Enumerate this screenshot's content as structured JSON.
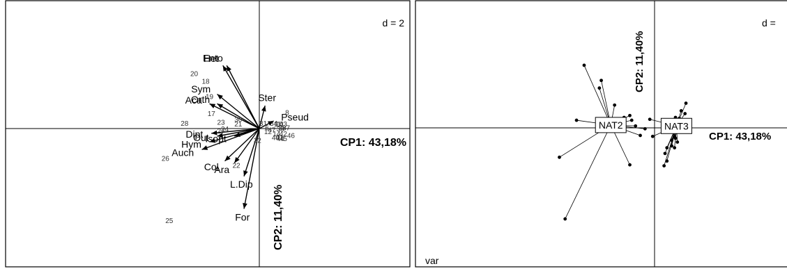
{
  "chart_data": [
    {
      "type": "scatter",
      "subtype": "biplot",
      "scale_label": "d = 2",
      "axis_labels": {
        "x": "CP1: 43,18%",
        "y": "CP2: 11,40%"
      },
      "xlim": [
        -7.8,
        4.3
      ],
      "ylim": [
        -5.1,
        3.8
      ],
      "variable_arrows": [
        {
          "label": "Het",
          "x": -1.9,
          "y": 3.3
        },
        {
          "label": "Ento",
          "x": -1.7,
          "y": 3.3
        },
        {
          "label": "Sym",
          "x": -2.2,
          "y": 1.8
        },
        {
          "label": "Aca",
          "x": -2.6,
          "y": 1.3
        },
        {
          "label": "Orth",
          "x": -2.2,
          "y": 1.3
        },
        {
          "label": "Ster",
          "x": 0.3,
          "y": 1.2
        },
        {
          "label": "Pseud",
          "x": 0.75,
          "y": 0.4
        },
        {
          "label": "Dipt",
          "x": -2.5,
          "y": -0.25
        },
        {
          "label": "Out",
          "x": -2.2,
          "y": -0.4
        },
        {
          "label": "Isopt",
          "x": -1.3,
          "y": -0.4
        },
        {
          "label": "Hym",
          "x": -2.6,
          "y": -0.7
        },
        {
          "label": "Auch",
          "x": -3.0,
          "y": -1.1
        },
        {
          "label": "Col",
          "x": -1.8,
          "y": -1.7
        },
        {
          "label": "Ara",
          "x": -1.3,
          "y": -1.8
        },
        {
          "label": "L.Dip",
          "x": -0.8,
          "y": -2.5
        },
        {
          "label": "For",
          "x": -0.8,
          "y": -4.2
        }
      ],
      "site_labels": [
        {
          "label": "20",
          "x": -3.4,
          "y": 2.9
        },
        {
          "label": "18",
          "x": -2.8,
          "y": 2.5
        },
        {
          "label": "19",
          "x": -2.6,
          "y": 1.7
        },
        {
          "label": "17",
          "x": -2.5,
          "y": 0.8
        },
        {
          "label": "30",
          "x": -1.1,
          "y": 0.5
        },
        {
          "label": "23",
          "x": -2.0,
          "y": 0.35
        },
        {
          "label": "21",
          "x": -1.1,
          "y": 0.25
        },
        {
          "label": "28",
          "x": -3.9,
          "y": 0.3
        },
        {
          "label": "24",
          "x": -1.8,
          "y": 0.0
        },
        {
          "label": "27",
          "x": -2.0,
          "y": -0.1
        },
        {
          "label": "31",
          "x": 0.2,
          "y": 0.3
        },
        {
          "label": "34",
          "x": 0.75,
          "y": 0.3
        },
        {
          "label": "11",
          "x": 0.95,
          "y": 0.25
        },
        {
          "label": "10",
          "x": 1.05,
          "y": 0.25
        },
        {
          "label": "43",
          "x": 1.25,
          "y": 0.25
        },
        {
          "label": "8",
          "x": 1.45,
          "y": 0.85
        },
        {
          "label": "6",
          "x": 0.4,
          "y": 0.05
        },
        {
          "label": "47",
          "x": 0.65,
          "y": -0.05
        },
        {
          "label": "39",
          "x": 1.1,
          "y": 0.0
        },
        {
          "label": "36",
          "x": 1.2,
          "y": 0.05
        },
        {
          "label": "37",
          "x": 1.4,
          "y": 0.05
        },
        {
          "label": "12",
          "x": 0.45,
          "y": -0.15
        },
        {
          "label": "14",
          "x": 0.9,
          "y": -0.25
        },
        {
          "label": "42",
          "x": 1.25,
          "y": -0.25
        },
        {
          "label": "46",
          "x": 1.65,
          "y": -0.35
        },
        {
          "label": "40",
          "x": 0.85,
          "y": -0.45
        },
        {
          "label": "41",
          "x": 1.05,
          "y": -0.45
        },
        {
          "label": "44",
          "x": 1.1,
          "y": -0.5
        },
        {
          "label": "45",
          "x": 1.25,
          "y": -0.5
        },
        {
          "label": "32",
          "x": -0.1,
          "y": -0.6
        },
        {
          "label": "22",
          "x": -1.2,
          "y": -1.9
        },
        {
          "label": "26",
          "x": -4.9,
          "y": -1.55
        },
        {
          "label": "25",
          "x": -4.7,
          "y": -4.8
        }
      ]
    },
    {
      "type": "scatter",
      "subtype": "class-star-plot",
      "scale_label": "d =",
      "corner_label": "var",
      "axis_labels": {
        "x": "CP1: 43,18%",
        "y": "CP2: 11,40%"
      },
      "xlim": [
        -8.6,
        4.1
      ],
      "ylim": [
        -5.1,
        3.8
      ],
      "groups": [
        {
          "label": "NAT2",
          "center": [
            -2.3,
            0.15
          ],
          "points": [
            [
              -3.7,
              3.3
            ],
            [
              -2.8,
              2.5
            ],
            [
              -2.9,
              2.1
            ],
            [
              -2.1,
              1.2
            ],
            [
              -1.3,
              0.65
            ],
            [
              -1.6,
              0.55
            ],
            [
              -2.3,
              0.4
            ],
            [
              -4.1,
              0.4
            ],
            [
              -1.2,
              0.4
            ],
            [
              -1.0,
              0.1
            ],
            [
              -0.5,
              -0.05
            ],
            [
              -0.75,
              -0.4
            ],
            [
              -1.3,
              -1.95
            ],
            [
              -5.0,
              -1.55
            ],
            [
              -4.7,
              -4.8
            ]
          ]
        },
        {
          "label": "NAT3",
          "center": [
            1.15,
            0.1
          ],
          "points": [
            [
              1.65,
              1.3
            ],
            [
              1.4,
              0.9
            ],
            [
              1.6,
              0.75
            ],
            [
              1.1,
              0.55
            ],
            [
              1.3,
              0.5
            ],
            [
              1.0,
              0.4
            ],
            [
              1.2,
              0.4
            ],
            [
              1.5,
              0.3
            ],
            [
              0.9,
              0.25
            ],
            [
              1.3,
              0.2
            ],
            [
              1.05,
              0.1
            ],
            [
              1.45,
              0.05
            ],
            [
              0.75,
              -0.05
            ],
            [
              1.15,
              -0.25
            ],
            [
              1.05,
              -0.45
            ],
            [
              1.1,
              -0.55
            ],
            [
              0.9,
              -0.65
            ],
            [
              1.2,
              -0.75
            ],
            [
              0.9,
              -0.95
            ],
            [
              1.05,
              -1.05
            ],
            [
              0.65,
              -1.05
            ],
            [
              0.55,
              -1.35
            ],
            [
              0.65,
              -1.75
            ],
            [
              0.5,
              -2.0
            ],
            [
              -0.1,
              -0.45
            ],
            [
              -0.25,
              0.45
            ]
          ]
        }
      ]
    }
  ]
}
